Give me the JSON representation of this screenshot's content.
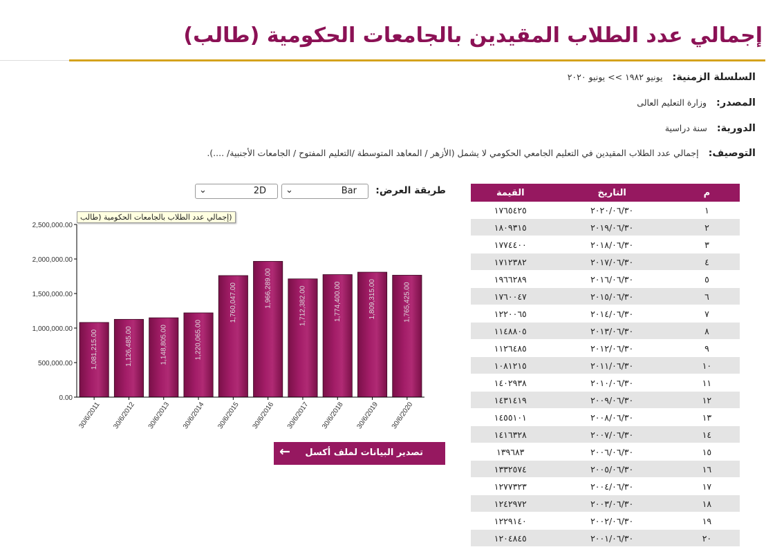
{
  "page_title": "إجمالي عدد الطلاب المقيدين بالجامعات الحكومية (طالب)",
  "meta": {
    "series_label": "السلسلة الزمنية:",
    "series_value": "يونيو ١٩٨٢ >> يونيو ٢٠٢٠",
    "source_label": "المصدر:",
    "source_value": "وزارة التعليم العالى",
    "periodicity_label": "الدورية:",
    "periodicity_value": "سنة دراسية",
    "description_label": "التوصيف:",
    "description_value": "إجمالي عدد الطلاب المقيدين في التعليم الجامعي الحكومي لا يشمل (الأزهر / المعاهد المتوسطة /التعليم المفتوح / الجامعات الأجنبية/ ....)."
  },
  "controls": {
    "display_label": "طريقة العرض:",
    "chart_type_value": "Bar",
    "dimension_value": "2D"
  },
  "table": {
    "headers": [
      "م",
      "التاريخ",
      "القيمة"
    ],
    "rows": [
      [
        "١",
        "٢٠٢٠/٠٦/٣٠",
        "١٧٦٥٤٢٥"
      ],
      [
        "٢",
        "٢٠١٩/٠٦/٣٠",
        "١٨٠٩٣١٥"
      ],
      [
        "٣",
        "٢٠١٨/٠٦/٣٠",
        "١٧٧٤٤٠٠"
      ],
      [
        "٤",
        "٢٠١٧/٠٦/٣٠",
        "١٧١٢٣٨٢"
      ],
      [
        "٥",
        "٢٠١٦/٠٦/٣٠",
        "١٩٦٦٢٨٩"
      ],
      [
        "٦",
        "٢٠١٥/٠٦/٣٠",
        "١٧٦٠٠٤٧"
      ],
      [
        "٧",
        "٢٠١٤/٠٦/٣٠",
        "١٢٢٠٠٦٥"
      ],
      [
        "٨",
        "٢٠١٣/٠٦/٣٠",
        "١١٤٨٨٠٥"
      ],
      [
        "٩",
        "٢٠١٢/٠٦/٣٠",
        "١١٢٦٤٨٥"
      ],
      [
        "١٠",
        "٢٠١١/٠٦/٣٠",
        "١٠٨١٢١٥"
      ],
      [
        "١١",
        "٢٠١٠/٠٦/٣٠",
        "١٤٠٢٩٣٨"
      ],
      [
        "١٢",
        "٢٠٠٩/٠٦/٣٠",
        "١٤٣١٤١٩"
      ],
      [
        "١٣",
        "٢٠٠٨/٠٦/٣٠",
        "١٤٥٥١٠١"
      ],
      [
        "١٤",
        "٢٠٠٧/٠٦/٣٠",
        "١٤١٦٣٢٨"
      ],
      [
        "١٥",
        "٢٠٠٦/٠٦/٣٠",
        "١٣٩٦٨٣"
      ],
      [
        "١٦",
        "٢٠٠٥/٠٦/٣٠",
        "١٣٣٢٥٧٤"
      ],
      [
        "١٧",
        "٢٠٠٤/٠٦/٣٠",
        "١٢٧٧٣٢٣"
      ],
      [
        "١٨",
        "٢٠٠٣/٠٦/٣٠",
        "١٢٤٢٩٧٢"
      ],
      [
        "١٩",
        "٢٠٠٢/٠٦/٣٠",
        "١٢٢٩١٤٠"
      ],
      [
        "٢٠",
        "٢٠٠١/٠٦/٣٠",
        "١٢٠٤٨٤٥"
      ]
    ]
  },
  "export_button": "تصدير البيانات لملف أكسل",
  "colors": {
    "accent": "#961860",
    "gold": "#d4a21c",
    "bar_fill": "#a31d68"
  },
  "chart_data": {
    "type": "bar",
    "title": "(إجمالي عدد الطلاب بالجامعات الحكومية (طالب",
    "categories": [
      "30/6/2011",
      "30/6/2012",
      "30/6/2013",
      "30/6/2014",
      "30/6/2015",
      "30/6/2016",
      "30/6/2017",
      "30/6/2018",
      "30/6/2019",
      "30/6/2020"
    ],
    "values": [
      1081215,
      1126485,
      1148805,
      1220065,
      1760047,
      1966289,
      1712382,
      1774400,
      1809315,
      1765425
    ],
    "data_labels": [
      "1,081,215.00",
      "1,126,485.00",
      "1,148,805.00",
      "1,220,065.00",
      "1,760,047.00",
      "1,966,289.00",
      "1,712,382.00",
      "1,774,400.00",
      "1,809,315.00",
      "1,765,425.00"
    ],
    "y_ticks": [
      "0.00",
      "500,000.00",
      "1,000,000.00",
      "1,500,000.00",
      "2,000,000.00",
      "2,500,000.00"
    ],
    "ylim": [
      0,
      2500000
    ],
    "grid": false,
    "legend": "none"
  }
}
